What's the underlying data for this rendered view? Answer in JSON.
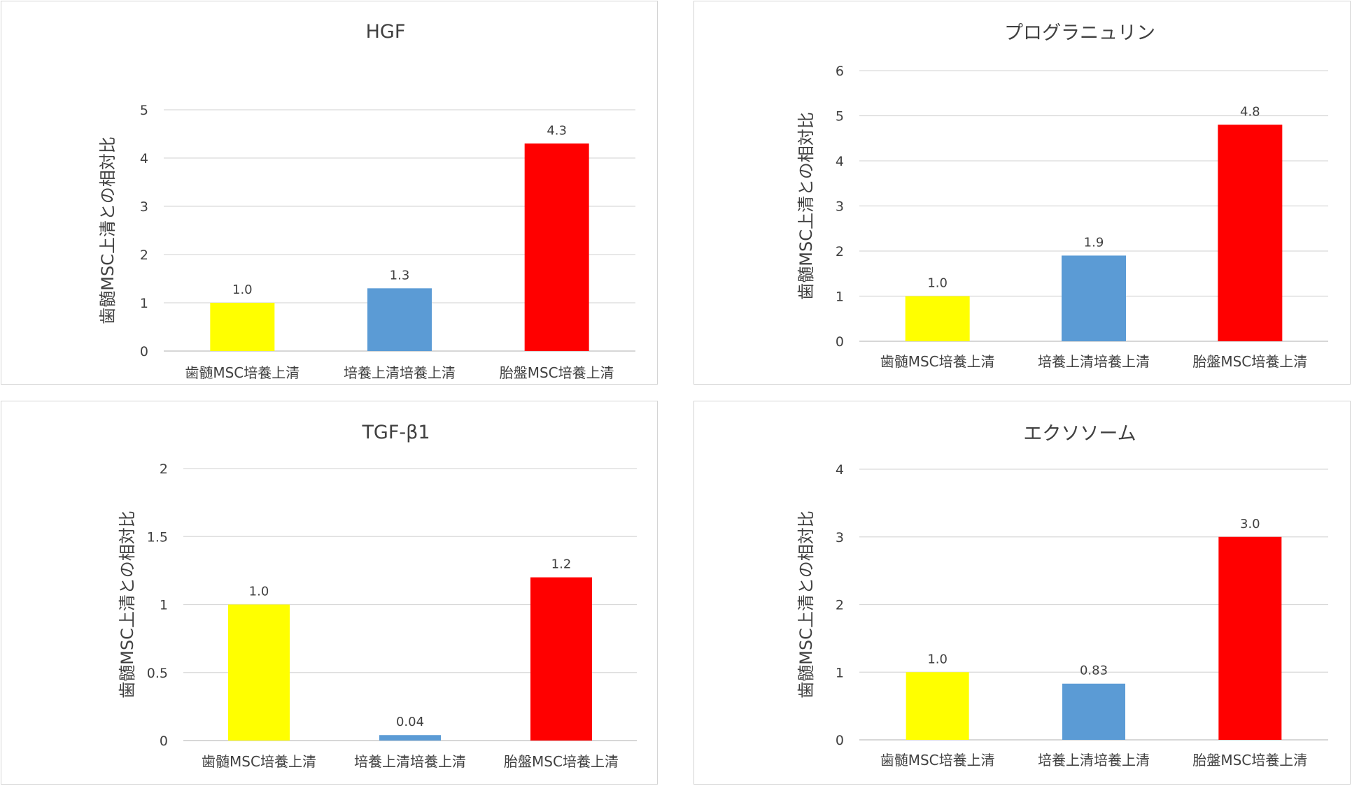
{
  "chart_data": [
    {
      "type": "bar",
      "title": "HGF",
      "xlabel": "",
      "ylabel": "歯髄MSC上清との相対比",
      "categories": [
        "歯髄MSC培養上清",
        "培養上清培養上清",
        "胎盤MSC培養上清"
      ],
      "values": [
        1.0,
        1.3,
        4.3
      ],
      "data_labels": [
        "1.0",
        "1.3",
        "4.3"
      ],
      "colors": [
        "#ffff00",
        "#5b9bd5",
        "#ff0000"
      ],
      "ylim": [
        0,
        5
      ],
      "yticks": [
        0,
        1,
        2,
        3,
        4,
        5
      ],
      "ytick_labels": [
        "0",
        "1",
        "2",
        "3",
        "4",
        "5"
      ],
      "grid": true
    },
    {
      "type": "bar",
      "title": "プログラニュリン",
      "xlabel": "",
      "ylabel": "歯髄MSC上清との相対比",
      "categories": [
        "歯髄MSC培養上清",
        "培養上清培養上清",
        "胎盤MSC培養上清"
      ],
      "values": [
        1.0,
        1.9,
        4.8
      ],
      "data_labels": [
        "1.0",
        "1.9",
        "4.8"
      ],
      "colors": [
        "#ffff00",
        "#5b9bd5",
        "#ff0000"
      ],
      "ylim": [
        0,
        6
      ],
      "yticks": [
        0,
        1,
        2,
        3,
        4,
        5,
        6
      ],
      "ytick_labels": [
        "0",
        "1",
        "2",
        "3",
        "4",
        "5",
        "6"
      ],
      "grid": true
    },
    {
      "type": "bar",
      "title": "TGF-β1",
      "xlabel": "",
      "ylabel": "歯髄MSC上清との相対比",
      "categories": [
        "歯髄MSC培養上清",
        "培養上清培養上清",
        "胎盤MSC培養上清"
      ],
      "values": [
        1.0,
        0.04,
        1.2
      ],
      "data_labels": [
        "1.0",
        "0.04",
        "1.2"
      ],
      "colors": [
        "#ffff00",
        "#5b9bd5",
        "#ff0000"
      ],
      "ylim": [
        0,
        2
      ],
      "yticks": [
        0,
        0.5,
        1,
        1.5,
        2
      ],
      "ytick_labels": [
        "0",
        "0.5",
        "1",
        "1.5",
        "2"
      ],
      "grid": true
    },
    {
      "type": "bar",
      "title": "エクソソーム",
      "xlabel": "",
      "ylabel": "歯髄MSC上清との相対比",
      "categories": [
        "歯髄MSC培養上清",
        "培養上清培養上清",
        "胎盤MSC培養上清"
      ],
      "values": [
        1.0,
        0.83,
        3.0
      ],
      "data_labels": [
        "1.0",
        "0.83",
        "3.0"
      ],
      "colors": [
        "#ffff00",
        "#5b9bd5",
        "#ff0000"
      ],
      "ylim": [
        0,
        4
      ],
      "yticks": [
        0,
        1,
        2,
        3,
        4
      ],
      "ytick_labels": [
        "0",
        "1",
        "2",
        "3",
        "4"
      ],
      "grid": true
    }
  ]
}
